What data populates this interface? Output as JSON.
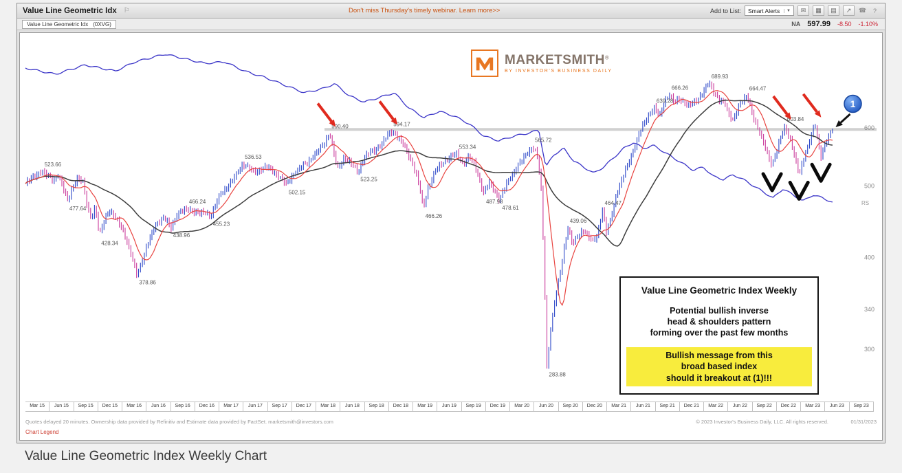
{
  "page": {
    "caption": "Value Line Geometric Index Weekly Chart"
  },
  "toolbar": {
    "title": "Value Line Geometric Idx",
    "flag_glyph": "⚐",
    "webinar_banner": "Don't miss Thursday's timely webinar. Learn more>>",
    "add_to_list_label": "Add to List:",
    "alerts_dropdown": "Smart Alerts",
    "caret_glyph": "▼",
    "icons": [
      {
        "name": "mail-icon",
        "glyph": "✉"
      },
      {
        "name": "charts-grid-icon",
        "glyph": "▦"
      },
      {
        "name": "print-icon",
        "glyph": "▤"
      },
      {
        "name": "share-icon",
        "glyph": "↗"
      },
      {
        "name": "phone-icon",
        "glyph": "☎"
      },
      {
        "name": "help-icon",
        "glyph": "?"
      }
    ]
  },
  "quote_bar": {
    "symbol_label": "Value Line Geometric Idx",
    "symbol_code": "(0XVG)",
    "rating": "NA",
    "price": "597.99",
    "change": "-8.50",
    "change_pct": "-1.10%"
  },
  "logo": {
    "brand": "MarketSmith",
    "registered": "®",
    "tagline": "BY INVESTOR'S BUSINESS DAILY"
  },
  "annotation_box": {
    "title": "Value Line Geometric Index Weekly",
    "lines": [
      "Potential bullish inverse",
      "head & shoulders pattern",
      "forming over the past few months"
    ],
    "highlight_lines": [
      "Bullish message from this",
      "broad based index",
      "should it breakout at (1)!!!"
    ],
    "highlight_color": "#f8ec3d"
  },
  "footer": {
    "disclaimer": "Quotes delayed 20 minutes. Ownership data provided by Refinitiv and Estimate data provided by FactSet. marketsmith@investors.com",
    "copyright": "© 2023 Investor's Business Daily, LLC. All rights reserved.",
    "date": "01/31/2023",
    "chart_legend_link": "Chart Legend"
  },
  "chart_data": {
    "type": "candlestick",
    "title": "Value Line Geometric Index Weekly",
    "symbol": "0XVG",
    "frequency": "weekly",
    "y_scale": "log",
    "x_range": [
      2015.0,
      2023.6
    ],
    "y_range": [
      283,
      690
    ],
    "y_axis_ticks": [
      600,
      500,
      400,
      340,
      300
    ],
    "x_axis_labels": [
      "Mar 15",
      "Jun 15",
      "Sep 15",
      "Dec 15",
      "Mar 16",
      "Jun 16",
      "Sep 16",
      "Dec 16",
      "Mar 17",
      "Jun 17",
      "Sep 17",
      "Dec 17",
      "Mar 18",
      "Jun 18",
      "Sep 18",
      "Dec 18",
      "Mar 19",
      "Jun 19",
      "Sep 19",
      "Dec 19",
      "Mar 20",
      "Jun 20",
      "Sep 20",
      "Dec 20",
      "Mar 21",
      "Jun 21",
      "Sep 21",
      "Dec 21",
      "Mar 22",
      "Jun 22",
      "Sep 22",
      "Dec 22",
      "Mar 23",
      "Jun 23",
      "Sep 23"
    ],
    "series": [
      {
        "name": "XVG weekly close",
        "style": "ohlc-bars",
        "color_up": "#2b46c8",
        "color_down": "#c9399b",
        "keypoints": [
          [
            2015.0,
            504
          ],
          [
            2015.06,
            512
          ],
          [
            2015.12,
            520
          ],
          [
            2015.17,
            523.66
          ],
          [
            2015.22,
            516
          ],
          [
            2015.28,
            510
          ],
          [
            2015.33,
            518
          ],
          [
            2015.38,
            496
          ],
          [
            2015.42,
            477.64
          ],
          [
            2015.47,
            498
          ],
          [
            2015.52,
            512
          ],
          [
            2015.58,
            505
          ],
          [
            2015.62,
            470
          ],
          [
            2015.66,
            452
          ],
          [
            2015.7,
            468
          ],
          [
            2015.74,
            428.34
          ],
          [
            2015.79,
            450
          ],
          [
            2015.84,
            464
          ],
          [
            2015.9,
            452
          ],
          [
            2015.96,
            442
          ],
          [
            2016.02,
            420
          ],
          [
            2016.07,
            398
          ],
          [
            2016.12,
            378.86
          ],
          [
            2016.17,
            396
          ],
          [
            2016.23,
            418
          ],
          [
            2016.3,
            442
          ],
          [
            2016.37,
            452
          ],
          [
            2016.42,
            448
          ],
          [
            2016.46,
            438.96
          ],
          [
            2016.52,
            458
          ],
          [
            2016.58,
            462
          ],
          [
            2016.62,
            466.24
          ],
          [
            2016.68,
            463
          ],
          [
            2016.74,
            458
          ],
          [
            2016.8,
            462
          ],
          [
            2016.86,
            455.23
          ],
          [
            2016.9,
            468
          ],
          [
            2016.95,
            487
          ],
          [
            2017.0,
            495
          ],
          [
            2017.06,
            505
          ],
          [
            2017.12,
            520
          ],
          [
            2017.18,
            536.53
          ],
          [
            2017.24,
            529
          ],
          [
            2017.3,
            522
          ],
          [
            2017.36,
            527
          ],
          [
            2017.42,
            531
          ],
          [
            2017.48,
            524
          ],
          [
            2017.54,
            516
          ],
          [
            2017.62,
            502.15
          ],
          [
            2017.68,
            518
          ],
          [
            2017.75,
            528
          ],
          [
            2017.82,
            538
          ],
          [
            2017.88,
            548
          ],
          [
            2017.95,
            560
          ],
          [
            2018.0,
            574
          ],
          [
            2018.05,
            590.4
          ],
          [
            2018.09,
            558
          ],
          [
            2018.13,
            527
          ],
          [
            2018.19,
            546
          ],
          [
            2018.25,
            540
          ],
          [
            2018.3,
            530
          ],
          [
            2018.34,
            523.25
          ],
          [
            2018.4,
            547
          ],
          [
            2018.46,
            556
          ],
          [
            2018.52,
            562
          ],
          [
            2018.58,
            572
          ],
          [
            2018.63,
            585
          ],
          [
            2018.67,
            594.17
          ],
          [
            2018.72,
            587
          ],
          [
            2018.77,
            574
          ],
          [
            2018.82,
            560
          ],
          [
            2018.87,
            542
          ],
          [
            2018.92,
            520
          ],
          [
            2018.96,
            492
          ],
          [
            2018.99,
            466.26
          ],
          [
            2019.04,
            498
          ],
          [
            2019.1,
            520
          ],
          [
            2019.16,
            534
          ],
          [
            2019.22,
            544
          ],
          [
            2019.28,
            549
          ],
          [
            2019.33,
            553.34
          ],
          [
            2019.39,
            536
          ],
          [
            2019.44,
            547
          ],
          [
            2019.5,
            538
          ],
          [
            2019.55,
            512
          ],
          [
            2019.6,
            487.98
          ],
          [
            2019.65,
            506
          ],
          [
            2019.7,
            494
          ],
          [
            2019.76,
            478.61
          ],
          [
            2019.82,
            502
          ],
          [
            2019.88,
            518
          ],
          [
            2019.93,
            531
          ],
          [
            2019.99,
            544
          ],
          [
            2020.04,
            556
          ],
          [
            2020.09,
            565.72
          ],
          [
            2020.13,
            552
          ],
          [
            2020.17,
            505
          ],
          [
            2020.2,
            398
          ],
          [
            2020.23,
            283.88
          ],
          [
            2020.27,
            320
          ],
          [
            2020.31,
            348
          ],
          [
            2020.36,
            378
          ],
          [
            2020.4,
            410
          ],
          [
            2020.44,
            439.06
          ],
          [
            2020.49,
            416
          ],
          [
            2020.54,
            428
          ],
          [
            2020.59,
            436
          ],
          [
            2020.64,
            428
          ],
          [
            2020.69,
            420
          ],
          [
            2020.74,
            432
          ],
          [
            2020.79,
            464.47
          ],
          [
            2020.83,
            430
          ],
          [
            2020.88,
            458
          ],
          [
            2020.93,
            488
          ],
          [
            2020.98,
            508
          ],
          [
            2021.04,
            535
          ],
          [
            2021.1,
            560
          ],
          [
            2021.16,
            590
          ],
          [
            2021.22,
            615
          ],
          [
            2021.27,
            630
          ],
          [
            2021.31,
            639.28
          ],
          [
            2021.36,
            620
          ],
          [
            2021.41,
            652
          ],
          [
            2021.46,
            666.26
          ],
          [
            2021.51,
            648
          ],
          [
            2021.56,
            658
          ],
          [
            2021.61,
            650
          ],
          [
            2021.66,
            642
          ],
          [
            2021.71,
            650
          ],
          [
            2021.76,
            661
          ],
          [
            2021.81,
            676
          ],
          [
            2021.86,
            689.93
          ],
          [
            2021.91,
            670
          ],
          [
            2021.96,
            656
          ],
          [
            2022.01,
            648
          ],
          [
            2022.06,
            624
          ],
          [
            2022.1,
            616
          ],
          [
            2022.15,
            640
          ],
          [
            2022.2,
            654
          ],
          [
            2022.24,
            664.47
          ],
          [
            2022.29,
            630
          ],
          [
            2022.34,
            600
          ],
          [
            2022.39,
            580
          ],
          [
            2022.44,
            556
          ],
          [
            2022.49,
            533
          ],
          [
            2022.54,
            560
          ],
          [
            2022.58,
            585
          ],
          [
            2022.62,
            603.84
          ],
          [
            2022.67,
            578
          ],
          [
            2022.71,
            552
          ],
          [
            2022.76,
            519
          ],
          [
            2022.81,
            548
          ],
          [
            2022.85,
            565
          ],
          [
            2022.89,
            590
          ],
          [
            2022.92,
            608
          ],
          [
            2022.95,
            576
          ],
          [
            2022.98,
            549
          ],
          [
            2023.02,
            568
          ],
          [
            2023.06,
            584
          ],
          [
            2023.1,
            597.5
          ]
        ]
      },
      {
        "name": "10-week moving average",
        "style": "line",
        "color": "#e8433f",
        "derived": "sma10 of close"
      },
      {
        "name": "40-week moving average",
        "style": "line",
        "color": "#3d3d3d",
        "derived": "sma40 of close"
      },
      {
        "name": "relative strength line",
        "style": "line",
        "color": "#3b35c8",
        "keypoints": [
          [
            2015.0,
            82
          ],
          [
            2015.3,
            80
          ],
          [
            2015.6,
            83
          ],
          [
            2015.9,
            81
          ],
          [
            2016.1,
            84
          ],
          [
            2016.4,
            86.5
          ],
          [
            2016.6,
            85
          ],
          [
            2016.8,
            83.5
          ],
          [
            2017.0,
            84
          ],
          [
            2017.2,
            81
          ],
          [
            2017.4,
            79
          ],
          [
            2017.6,
            76.5
          ],
          [
            2017.8,
            74
          ],
          [
            2018.0,
            75.5
          ],
          [
            2018.1,
            77
          ],
          [
            2018.25,
            73
          ],
          [
            2018.4,
            71
          ],
          [
            2018.55,
            72.5
          ],
          [
            2018.7,
            74
          ],
          [
            2018.85,
            69
          ],
          [
            2019.0,
            66
          ],
          [
            2019.15,
            68
          ],
          [
            2019.3,
            66.5
          ],
          [
            2019.45,
            64
          ],
          [
            2019.6,
            60
          ],
          [
            2019.75,
            58.5
          ],
          [
            2019.9,
            60
          ],
          [
            2020.05,
            61
          ],
          [
            2020.15,
            62
          ],
          [
            2020.22,
            50
          ],
          [
            2020.3,
            54
          ],
          [
            2020.4,
            56
          ],
          [
            2020.5,
            52
          ],
          [
            2020.6,
            50
          ],
          [
            2020.7,
            48
          ],
          [
            2020.8,
            50
          ],
          [
            2020.9,
            53
          ],
          [
            2021.0,
            56
          ],
          [
            2021.1,
            58
          ],
          [
            2021.2,
            56
          ],
          [
            2021.3,
            57
          ],
          [
            2021.4,
            55
          ],
          [
            2021.5,
            53
          ],
          [
            2021.6,
            51
          ],
          [
            2021.7,
            49
          ],
          [
            2021.8,
            50
          ],
          [
            2021.9,
            47
          ],
          [
            2022.0,
            46
          ],
          [
            2022.1,
            47.5
          ],
          [
            2022.2,
            46
          ],
          [
            2022.3,
            44
          ],
          [
            2022.4,
            42
          ],
          [
            2022.5,
            40
          ],
          [
            2022.6,
            43
          ],
          [
            2022.7,
            41
          ],
          [
            2022.8,
            39
          ],
          [
            2022.9,
            41
          ],
          [
            2023.0,
            40
          ],
          [
            2023.1,
            38.5
          ]
        ]
      }
    ],
    "price_labels": [
      [
        2015.17,
        523.66,
        "523.66",
        "above"
      ],
      [
        2015.42,
        477.64,
        "477.64",
        "below"
      ],
      [
        2015.74,
        428.34,
        "428.34",
        "below"
      ],
      [
        2016.12,
        378.86,
        "378.86",
        "below"
      ],
      [
        2016.46,
        438.96,
        "438.96",
        "below"
      ],
      [
        2016.62,
        466.24,
        "466.24",
        "above"
      ],
      [
        2016.86,
        455.23,
        "455.23",
        "below"
      ],
      [
        2017.18,
        536.53,
        "536.53",
        "above"
      ],
      [
        2017.62,
        502.15,
        "502.15",
        "below"
      ],
      [
        2018.05,
        590.4,
        "590.40",
        "above"
      ],
      [
        2018.34,
        523.25,
        "523.25",
        "below"
      ],
      [
        2018.67,
        594.17,
        "594.17",
        "above"
      ],
      [
        2018.99,
        466.26,
        "466.26",
        "below"
      ],
      [
        2019.33,
        553.34,
        "553.34",
        "above"
      ],
      [
        2019.6,
        487.98,
        "487.98",
        "below"
      ],
      [
        2019.76,
        478.61,
        "478.61",
        "below"
      ],
      [
        2020.09,
        565.72,
        "565.72",
        "above"
      ],
      [
        2020.23,
        283.88,
        "283.88",
        "below"
      ],
      [
        2020.44,
        439.06,
        "439.06",
        "above"
      ],
      [
        2020.79,
        464.47,
        "464.47",
        "above"
      ],
      [
        2021.31,
        639.28,
        "639.28",
        "above"
      ],
      [
        2021.46,
        666.26,
        "666.26",
        "above"
      ],
      [
        2021.86,
        689.93,
        "689.93",
        "above"
      ],
      [
        2022.24,
        664.47,
        "664.47",
        "above"
      ],
      [
        2022.62,
        603.84,
        "603.84",
        "above"
      ]
    ],
    "resistance_line": {
      "price": 597,
      "from": 2018.0,
      "color": "#d0d0d0"
    },
    "red_arrow_peaks": [
      [
        2018.05,
        590.4
      ],
      [
        2018.67,
        594.17
      ],
      [
        2022.62,
        603.84
      ],
      [
        2022.92,
        608
      ]
    ],
    "inverse_hs_lows": [
      [
        2022.49,
        533
      ],
      [
        2022.76,
        519
      ],
      [
        2022.98,
        549
      ]
    ],
    "breakout_badge": {
      "label": "1",
      "t": 2023.3,
      "color": "#2f6bd8"
    },
    "rs_end_label": "RS"
  }
}
